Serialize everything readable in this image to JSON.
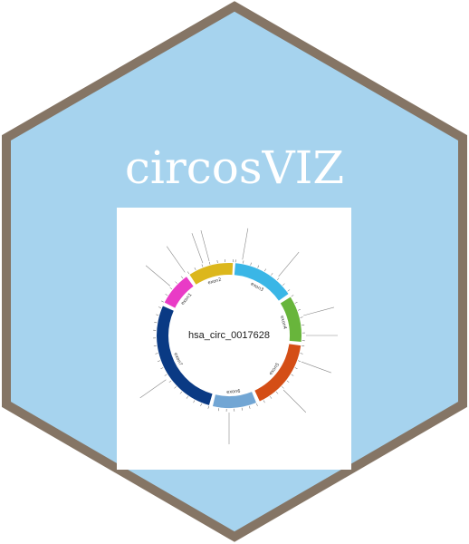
{
  "logo": {
    "title": "circosVIZ",
    "hex_fill": "#a6d3ee",
    "hex_border": "#857565",
    "title_color": "#ffffff",
    "plot_background": "#ffffff"
  },
  "circos_plot": {
    "center_label": "hsa_circ_0017628",
    "center_label_color": "#1a1a1a",
    "tick_color": "#555555",
    "segments": [
      {
        "label": "exon2",
        "color": "#dcb71c",
        "start_deg": -33,
        "end_deg": 3
      },
      {
        "label": "exon3",
        "color": "#3ab6e6",
        "start_deg": 5,
        "end_deg": 55
      },
      {
        "label": "exon4",
        "color": "#68b53b",
        "start_deg": 58,
        "end_deg": 95
      },
      {
        "label": "exon5",
        "color": "#d44e16",
        "start_deg": 98,
        "end_deg": 155
      },
      {
        "label": "exon6",
        "color": "#72a6d4",
        "start_deg": 158,
        "end_deg": 193
      },
      {
        "label": "exon7",
        "color": "#0a3a84",
        "start_deg": 196,
        "end_deg": 294
      },
      {
        "label": "exon1",
        "color": "#e93bc6",
        "start_deg": 297,
        "end_deg": 324
      }
    ]
  }
}
